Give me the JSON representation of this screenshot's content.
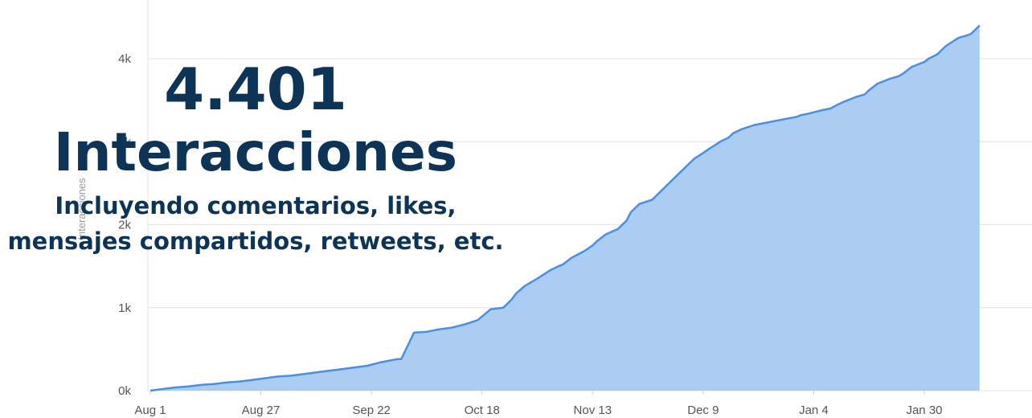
{
  "overlay": {
    "number": "4.401",
    "label": "Interacciones",
    "subtitle": "Incluyendo comentarios, likes, mensajes compartidos, retweets, etc."
  },
  "colors": {
    "fill": "#abcdf4",
    "line": "#4a8fe0",
    "grid": "#e3e3e3",
    "overlay_text": "#0d3357"
  },
  "chart_data": {
    "type": "area",
    "ylabel": "Interacciones",
    "ylim": [
      0,
      4700
    ],
    "yticks": [
      0,
      1000,
      2000,
      3000,
      4000
    ],
    "ytick_labels": [
      "0k",
      "1k",
      "2k",
      "3k",
      "4k"
    ],
    "xticks": [
      "Aug 1",
      "Aug 27",
      "Sep 22",
      "Oct 18",
      "Nov 13",
      "Dec 9",
      "Jan 4",
      "Jan 30"
    ],
    "xlim_days": [
      0,
      202
    ],
    "grid": true,
    "series": [
      {
        "x": [
          0,
          3,
          6,
          9,
          12,
          15,
          18,
          21,
          24,
          27,
          30,
          33,
          36,
          39,
          42,
          45,
          48,
          51,
          54,
          57,
          58,
          59,
          62,
          65,
          68,
          71,
          74,
          77,
          80,
          83,
          85,
          86,
          88,
          91,
          94,
          96,
          97,
          99,
          102,
          104,
          105,
          107,
          110,
          112,
          113,
          115,
          118,
          120,
          121,
          123,
          126,
          128,
          129,
          131,
          134,
          136,
          137,
          139,
          142,
          144,
          145,
          147,
          150,
          152,
          153,
          155,
          158,
          160,
          161,
          163,
          166,
          168,
          169,
          171,
          174,
          176,
          177,
          179,
          182,
          183,
          185,
          187,
          190,
          192,
          193,
          194,
          195
        ],
        "values": [
          0,
          20,
          40,
          50,
          70,
          80,
          100,
          110,
          130,
          150,
          170,
          180,
          200,
          220,
          240,
          260,
          280,
          300,
          340,
          370,
          380,
          380,
          700,
          710,
          740,
          760,
          800,
          850,
          980,
          1000,
          1100,
          1170,
          1260,
          1350,
          1450,
          1500,
          1520,
          1600,
          1680,
          1750,
          1800,
          1880,
          1950,
          2050,
          2150,
          2250,
          2300,
          2400,
          2450,
          2550,
          2700,
          2800,
          2830,
          2900,
          3000,
          3050,
          3100,
          3150,
          3200,
          3220,
          3230,
          3250,
          3280,
          3300,
          3320,
          3340,
          3380,
          3400,
          3430,
          3480,
          3540,
          3570,
          3620,
          3700,
          3760,
          3790,
          3820,
          3900,
          3960,
          4000,
          4050,
          4150,
          4250,
          4280,
          4300,
          4350,
          4401
        ]
      }
    ]
  }
}
